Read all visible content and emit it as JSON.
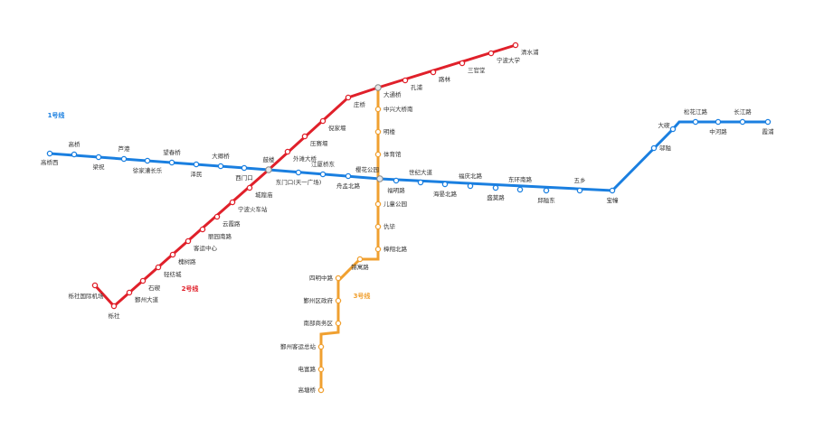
{
  "lines": [
    {
      "name": "1号线",
      "color": "#1a7fe0",
      "stations": [
        "高桥西",
        "高桥",
        "梁祝",
        "芦港",
        "徐家漕长乐",
        "望春桥",
        "泽民",
        "大卿桥",
        "西门口",
        "鼓楼",
        "东门口(天一广场)",
        "江厦桥东",
        "舟孟北路",
        "樱花公园",
        "福明路",
        "世纪大道",
        "海晏北路",
        "福庆北路",
        "盛莫路",
        "东环南路",
        "邱隘东",
        "五乡",
        "宝幢",
        "邬隘",
        "大碶",
        "松花江路",
        "中河路",
        "长江路",
        "霞浦"
      ]
    },
    {
      "name": "2号线",
      "color": "#e0202a",
      "stations": [
        "栎社国际机场",
        "栎社",
        "鄞州大道",
        "石碶",
        "轻纺城",
        "槐树路",
        "客运中心",
        "丽园南路",
        "云霞路",
        "宁波火车站",
        "城隍庙",
        "外滩大桥",
        "压赛堰",
        "倪家堰",
        "庄桥",
        "大通桥",
        "孔浦",
        "路林",
        "三官堂",
        "宁波大学",
        "清水浦"
      ]
    },
    {
      "name": "3号线",
      "color": "#f0a030",
      "stations": [
        "中兴大桥南",
        "明楼",
        "体育馆",
        "儿童公园",
        "仇毕",
        "樟翔北路",
        "锦寓路",
        "四明中路",
        "鄞州区政府",
        "南部商务区",
        "鄞州客运总站",
        "电富路",
        "高塘桥"
      ]
    }
  ]
}
